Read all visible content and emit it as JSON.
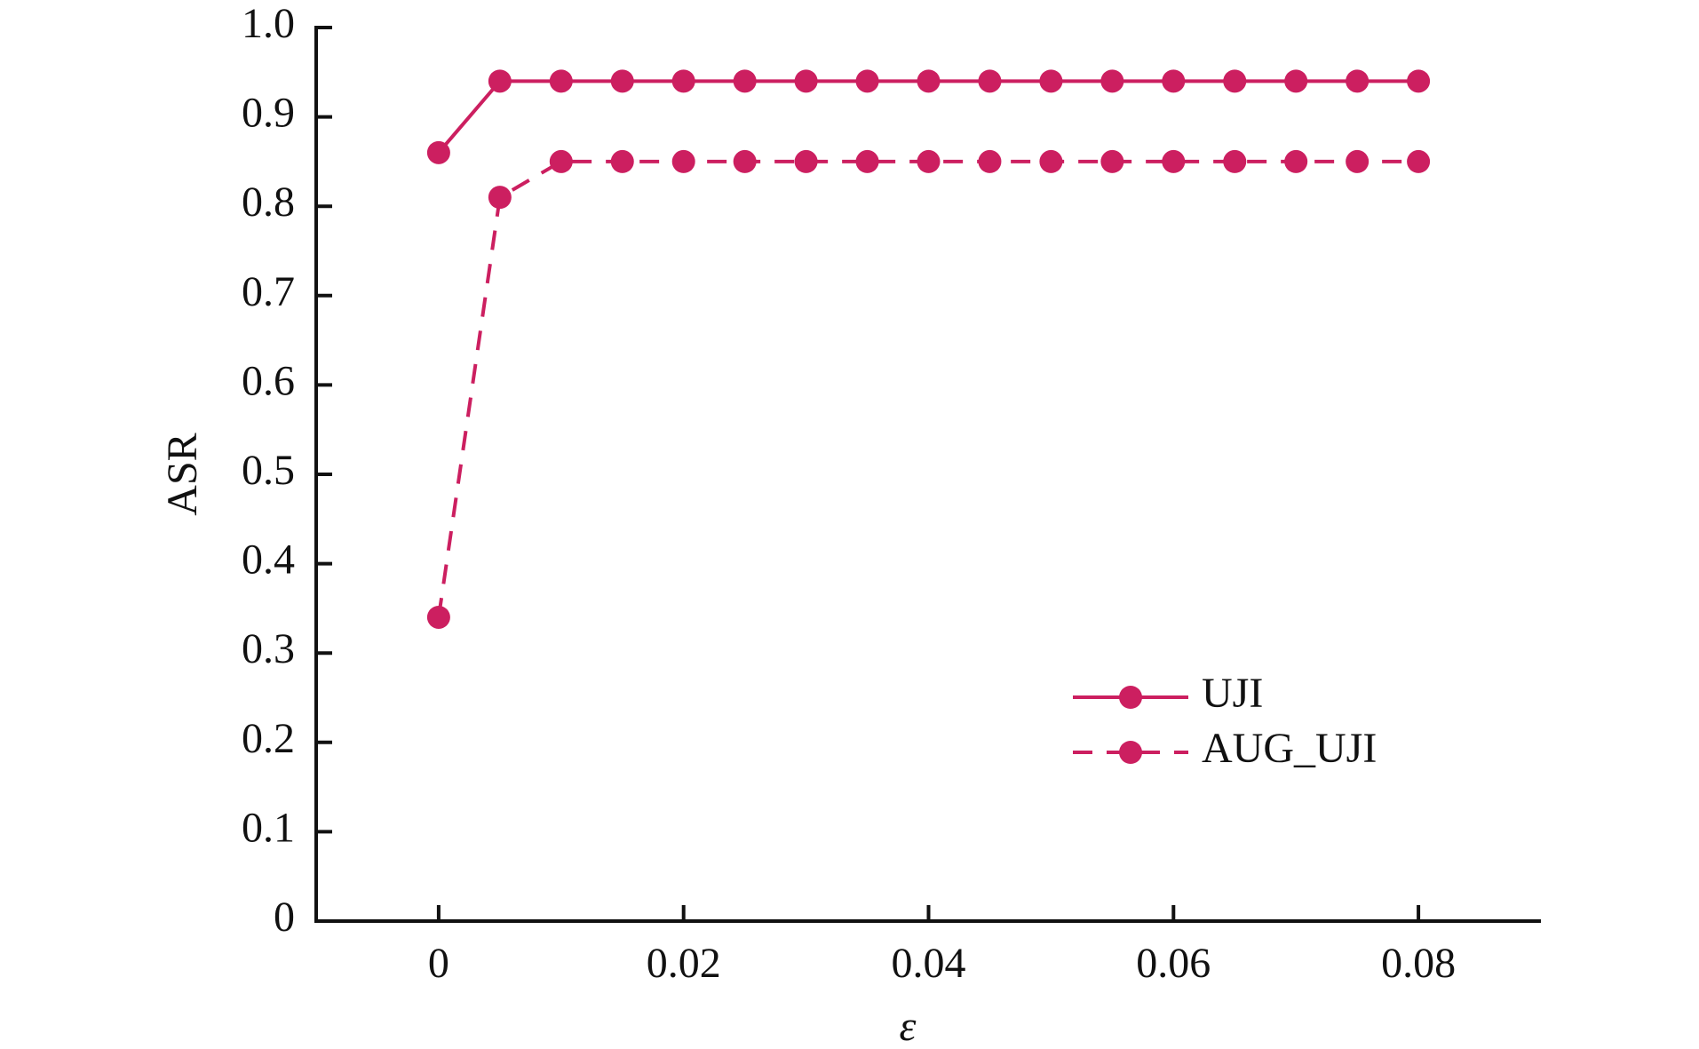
{
  "chart_data": {
    "type": "line",
    "x_label": "ε",
    "y_label": "ASR",
    "x": [
      0,
      0.005,
      0.01,
      0.015,
      0.02,
      0.025,
      0.03,
      0.035,
      0.04,
      0.045,
      0.05,
      0.055,
      0.06,
      0.065,
      0.07,
      0.075,
      0.08
    ],
    "series": [
      {
        "name": "UJI",
        "color": "#cc1f60",
        "dash": false,
        "values": [
          0.86,
          0.94,
          0.94,
          0.94,
          0.94,
          0.94,
          0.94,
          0.94,
          0.94,
          0.94,
          0.94,
          0.94,
          0.94,
          0.94,
          0.94,
          0.94,
          0.94
        ]
      },
      {
        "name": "AUG_UJI",
        "color": "#cc1f60",
        "dash": true,
        "values": [
          0.34,
          0.81,
          0.85,
          0.85,
          0.85,
          0.85,
          0.85,
          0.85,
          0.85,
          0.85,
          0.85,
          0.85,
          0.85,
          0.85,
          0.85,
          0.85,
          0.85
        ]
      }
    ],
    "xlim": [
      -0.01,
      0.09
    ],
    "xticks": [
      0,
      0.02,
      0.04,
      0.06,
      0.08
    ],
    "ylim": [
      0,
      1
    ],
    "yticks": [
      0,
      0.1,
      0.2,
      0.3,
      0.4,
      0.5,
      0.6,
      0.7,
      0.8,
      0.9,
      {
        "value": 1,
        "label": "1.0"
      }
    ],
    "grid": false,
    "legend": "lower right"
  }
}
